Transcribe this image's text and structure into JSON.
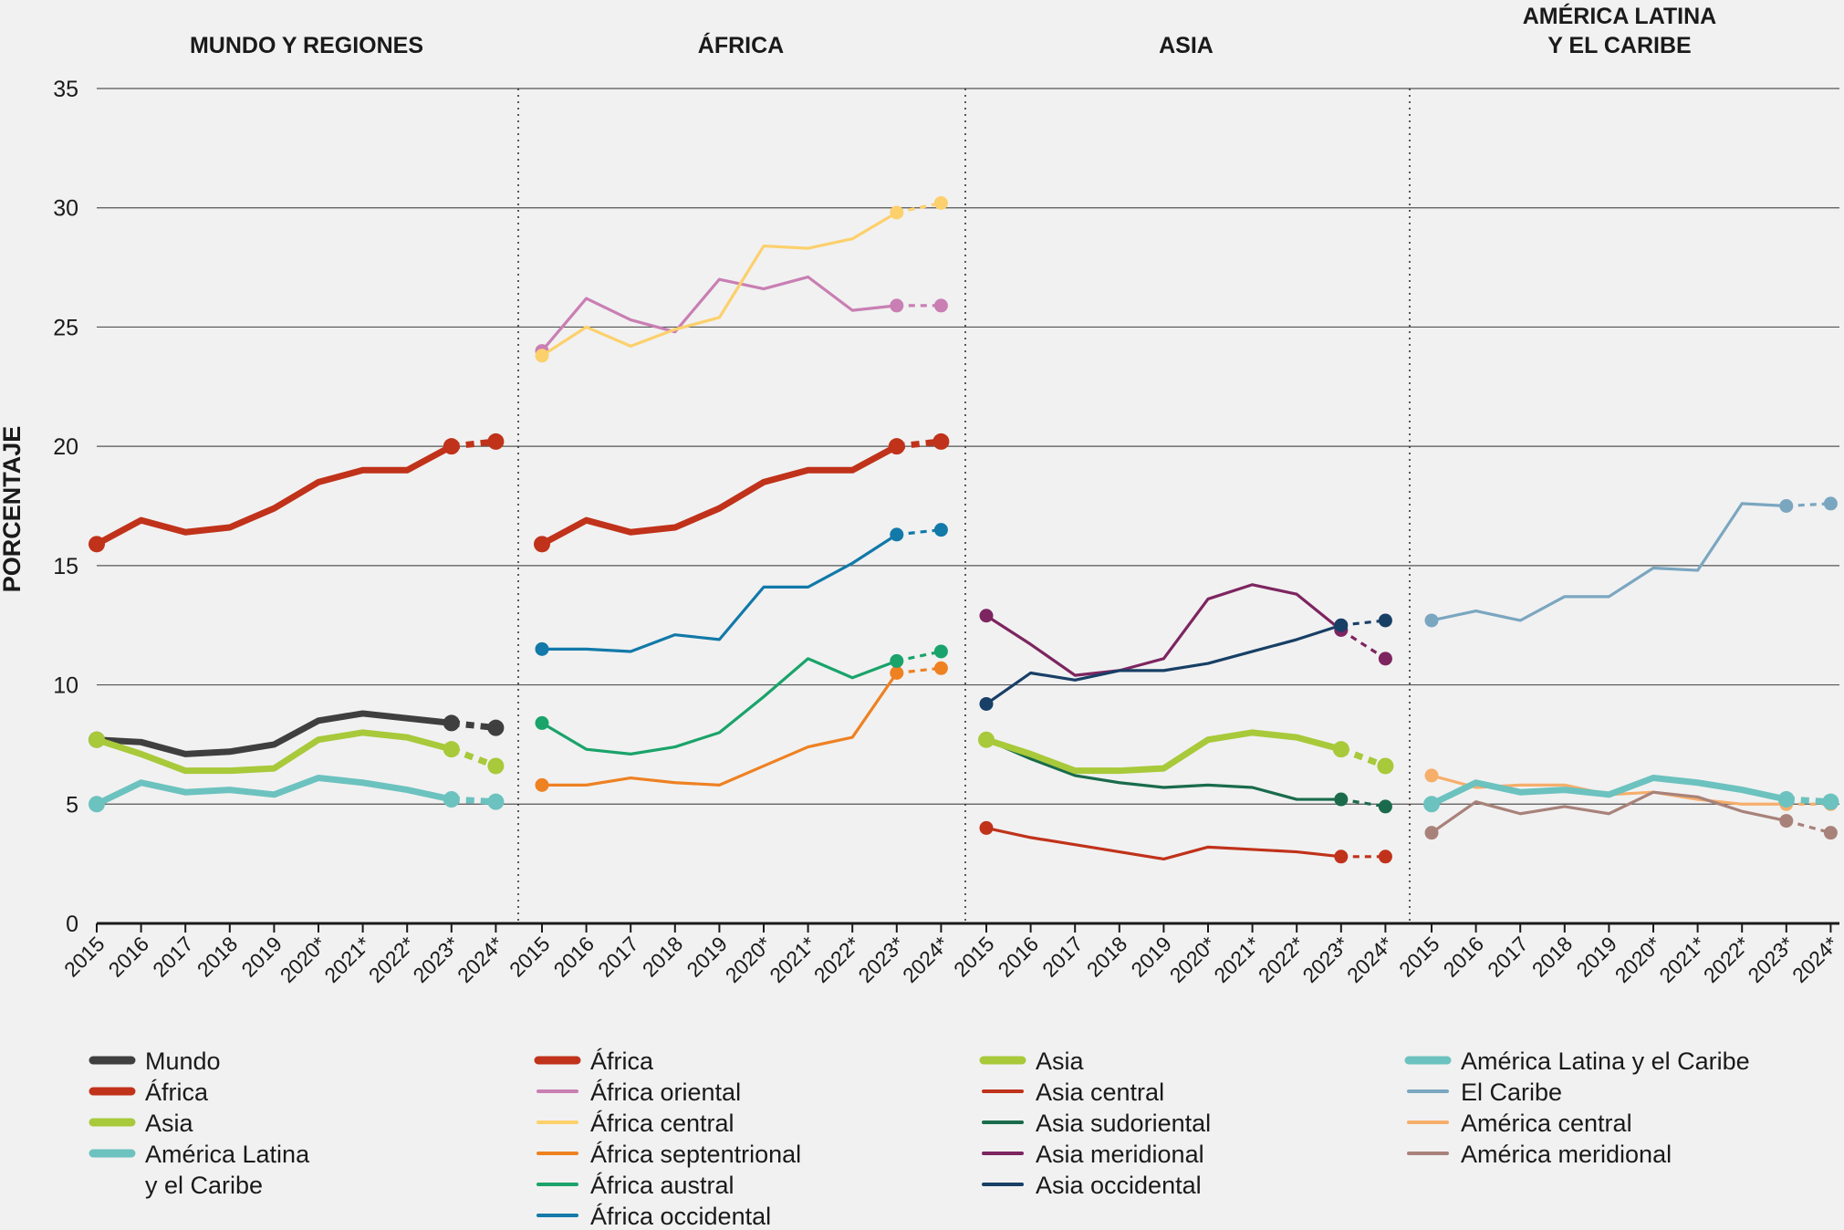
{
  "chart_data": {
    "type": "line",
    "ylabel": "PORCENTAJE",
    "ylim": [
      0,
      35
    ],
    "yticks": [
      0,
      5,
      10,
      15,
      20,
      25,
      30,
      35
    ],
    "x_labels": [
      "2015",
      "2016",
      "2017",
      "2018",
      "2019",
      "2020*",
      "2021*",
      "2022*",
      "2023*",
      "2024*"
    ],
    "panels": [
      {
        "title": "MUNDO Y REGIONES",
        "series": [
          {
            "name": "Mundo",
            "color": "#3f3f3f",
            "values": [
              7.7,
              7.6,
              7.1,
              7.2,
              7.5,
              8.5,
              8.8,
              8.6,
              8.4,
              8.2
            ]
          },
          {
            "name": "África",
            "color": "#c0321a",
            "values": [
              15.9,
              16.9,
              16.4,
              16.6,
              17.4,
              18.5,
              19.0,
              19.0,
              20.0,
              20.2
            ]
          },
          {
            "name": "Asia",
            "color": "#a8c93a",
            "values": [
              7.7,
              7.1,
              6.4,
              6.4,
              6.5,
              7.7,
              8.0,
              7.8,
              7.3,
              6.6
            ]
          },
          {
            "name": "América Latina\ny el Caribe",
            "color": "#6cc2bf",
            "values": [
              5.0,
              5.9,
              5.5,
              5.6,
              5.4,
              6.1,
              5.9,
              5.6,
              5.2,
              5.1
            ]
          }
        ]
      },
      {
        "title": "ÁFRICA",
        "series": [
          {
            "name": "África",
            "color": "#c0321a",
            "values": [
              15.9,
              16.9,
              16.4,
              16.6,
              17.4,
              18.5,
              19.0,
              19.0,
              20.0,
              20.2
            ]
          },
          {
            "name": "África oriental",
            "color": "#c97fb3",
            "values": [
              24.0,
              26.2,
              25.3,
              24.8,
              27.0,
              26.6,
              27.1,
              25.7,
              25.9,
              25.9
            ]
          },
          {
            "name": "África central",
            "color": "#fcd06c",
            "values": [
              23.8,
              25.0,
              24.2,
              24.9,
              25.4,
              28.4,
              28.3,
              28.7,
              29.8,
              30.2
            ]
          },
          {
            "name": "África septentrional",
            "color": "#ee8122",
            "values": [
              5.8,
              5.8,
              6.1,
              5.9,
              5.8,
              6.6,
              7.4,
              7.8,
              10.5,
              10.7
            ]
          },
          {
            "name": "África austral",
            "color": "#1aa36a",
            "values": [
              8.4,
              7.3,
              7.1,
              7.4,
              8.0,
              9.5,
              11.1,
              10.3,
              11.0,
              11.4
            ]
          },
          {
            "name": "África occidental",
            "color": "#1279a9",
            "values": [
              11.5,
              11.5,
              11.4,
              12.1,
              11.9,
              14.1,
              14.1,
              15.1,
              16.3,
              16.5
            ]
          }
        ]
      },
      {
        "title": "ASIA",
        "series": [
          {
            "name": "Asia",
            "color": "#a8c93a",
            "values": [
              7.7,
              7.1,
              6.4,
              6.4,
              6.5,
              7.7,
              8.0,
              7.8,
              7.3,
              6.6
            ]
          },
          {
            "name": "Asia central",
            "color": "#c0321a",
            "values": [
              4.0,
              3.6,
              3.3,
              3.0,
              2.7,
              3.2,
              3.1,
              3.0,
              2.8,
              2.8
            ]
          },
          {
            "name": "Asia sudoriental",
            "color": "#1a6b4c",
            "values": [
              7.7,
              6.9,
              6.2,
              5.9,
              5.7,
              5.8,
              5.7,
              5.2,
              5.2,
              4.9
            ]
          },
          {
            "name": "Asia meridional",
            "color": "#7d2560",
            "values": [
              12.9,
              11.7,
              10.4,
              10.6,
              11.1,
              13.6,
              14.2,
              13.8,
              12.3,
              11.1
            ]
          },
          {
            "name": "Asia occidental",
            "color": "#183f66",
            "values": [
              9.2,
              10.5,
              10.2,
              10.6,
              10.6,
              10.9,
              11.4,
              11.9,
              12.5,
              12.7
            ]
          }
        ]
      },
      {
        "title": "AMÉRICA LATINA\nY EL CARIBE",
        "series": [
          {
            "name": "América Latina y el Caribe",
            "color": "#6cc2bf",
            "values": [
              5.0,
              5.9,
              5.5,
              5.6,
              5.4,
              6.1,
              5.9,
              5.6,
              5.2,
              5.1
            ]
          },
          {
            "name": "El Caribe",
            "color": "#7ba6c0",
            "values": [
              12.7,
              13.1,
              12.7,
              13.7,
              13.7,
              14.9,
              14.8,
              17.6,
              17.5,
              17.6
            ]
          },
          {
            "name": "América central",
            "color": "#f6ae6b",
            "values": [
              6.2,
              5.7,
              5.8,
              5.8,
              5.4,
              5.5,
              5.2,
              5.0,
              5.0,
              5.0
            ]
          },
          {
            "name": "América meridional",
            "color": "#a8827a",
            "values": [
              3.8,
              5.1,
              4.6,
              4.9,
              4.6,
              5.5,
              5.3,
              4.7,
              4.3,
              3.8
            ]
          }
        ]
      }
    ]
  }
}
